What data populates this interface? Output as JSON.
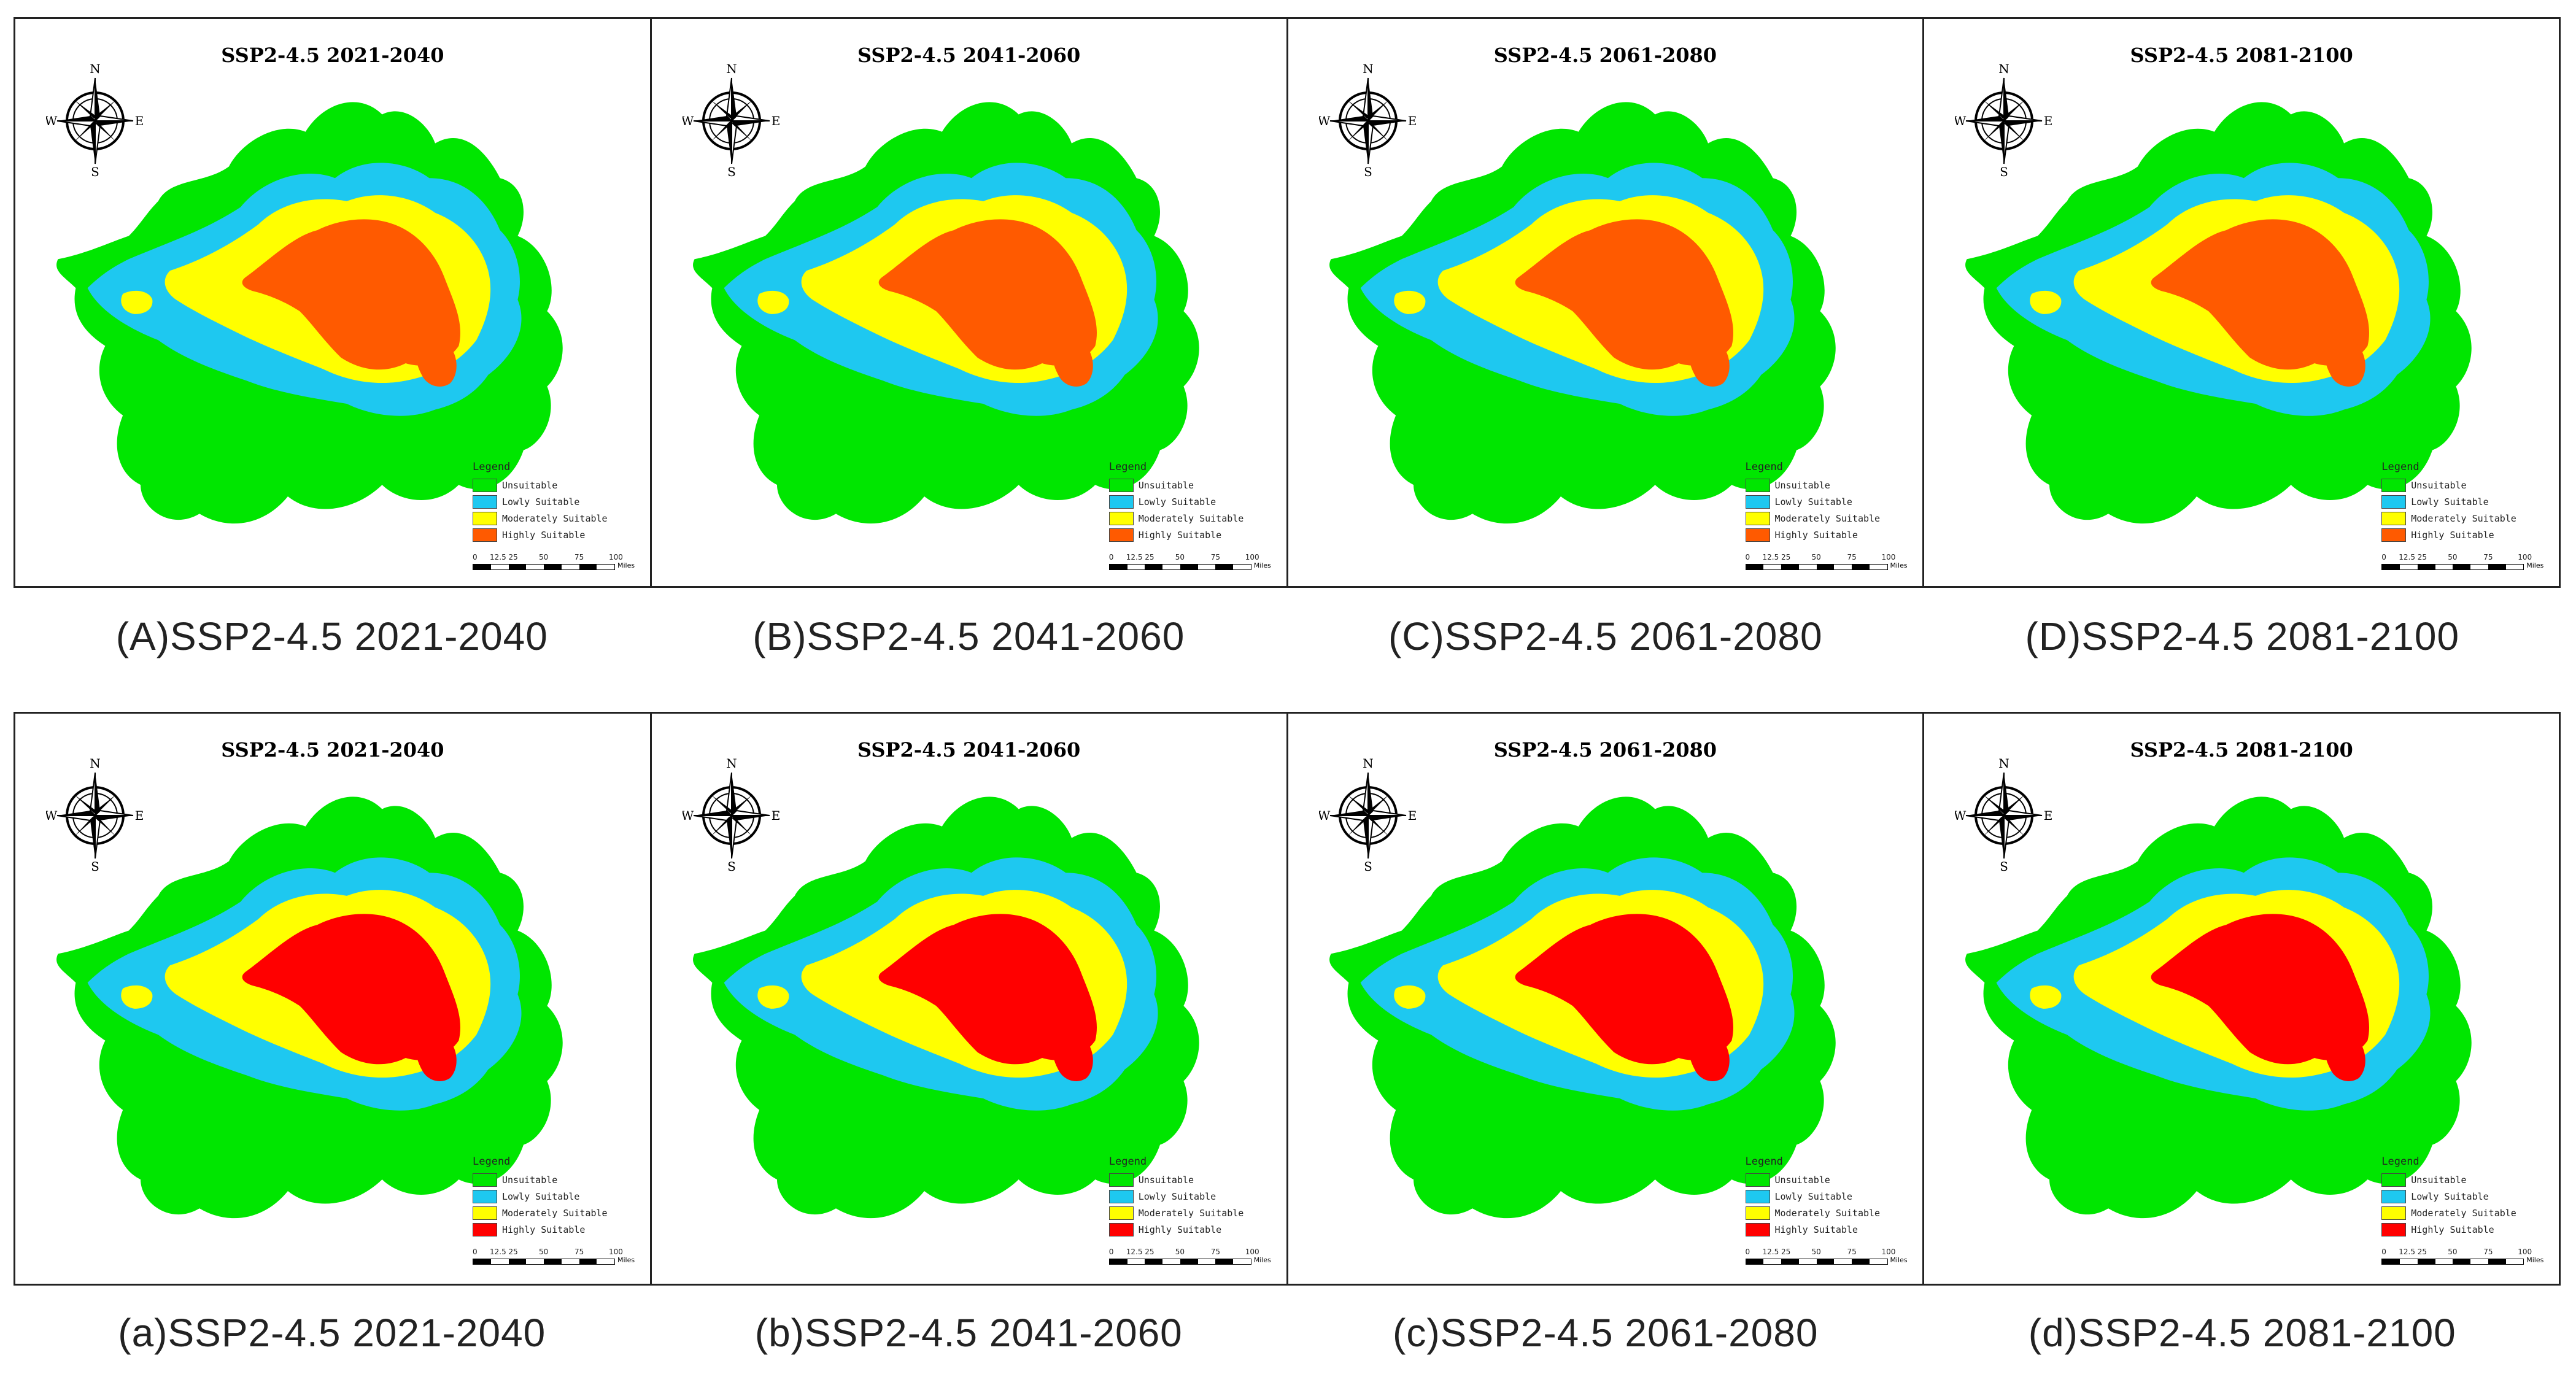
{
  "colors": {
    "unsuitable": "#00e600",
    "lowly": "#1ec8f0",
    "moderately": "#ffff00",
    "highly_top": "#ff5a00",
    "highly_bottom": "#ff0000"
  },
  "compass": {
    "n": "N",
    "s": "S",
    "e": "E",
    "w": "W",
    "icon": "compass-rose-icon"
  },
  "legend": {
    "title": "Legend",
    "items": [
      "Unsuitable",
      "Lowly Suitable",
      "Moderately Suitable",
      "Highly Suitable"
    ]
  },
  "scale": {
    "ticks": [
      "0",
      "12.5 25",
      "50",
      "75",
      "100"
    ],
    "unit": "Miles"
  },
  "rows": [
    {
      "panels": [
        {
          "title": "SSP2-4.5 2021-2040",
          "caption": "(A)SSP2-4.5 2021-2040"
        },
        {
          "title": "SSP2-4.5 2041-2060",
          "caption": "(B)SSP2-4.5 2041-2060"
        },
        {
          "title": "SSP2-4.5 2061-2080",
          "caption": "(C)SSP2-4.5 2061-2080"
        },
        {
          "title": "SSP2-4.5 2081-2100",
          "caption": "(D)SSP2-4.5 2081-2100"
        }
      ]
    },
    {
      "panels": [
        {
          "title": "SSP2-4.5 2021-2040",
          "caption": "(a)SSP2-4.5 2021-2040"
        },
        {
          "title": "SSP2-4.5 2041-2060",
          "caption": "(b)SSP2-4.5 2041-2060"
        },
        {
          "title": "SSP2-4.5 2061-2080",
          "caption": "(c)SSP2-4.5 2061-2080"
        },
        {
          "title": "SSP2-4.5 2081-2100",
          "caption": "(d)SSP2-4.5 2081-2100"
        }
      ]
    }
  ]
}
